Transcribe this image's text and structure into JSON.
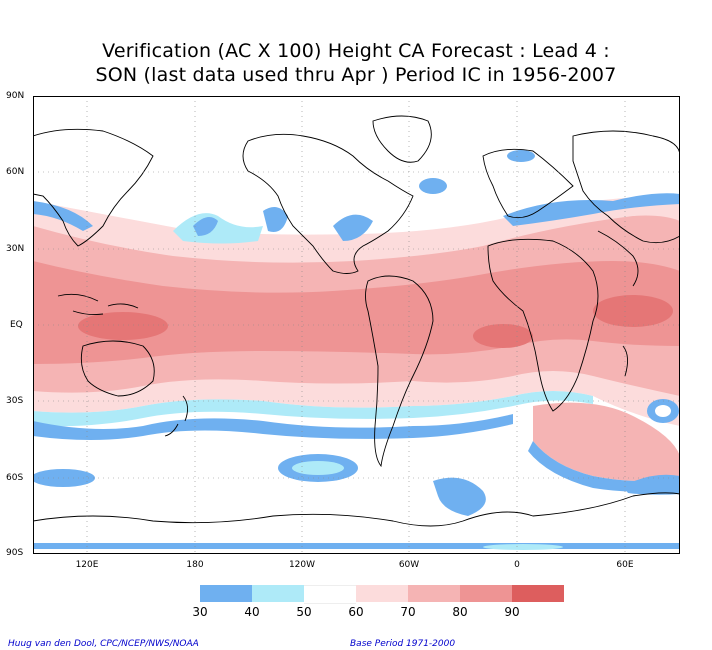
{
  "title_line1": "Verification (AC X 100) Height CA Forecast : Lead 4 :",
  "title_line2": "SON (last data used thru Apr ) Period IC in 1956-2007",
  "lat_labels": [
    "90N",
    "60N",
    "30N",
    "EQ",
    "30S",
    "60S",
    "90S"
  ],
  "lon_labels": [
    "120E",
    "180",
    "120W",
    "60W",
    "0",
    "60E"
  ],
  "colorbar": {
    "labels": [
      "30",
      "40",
      "50",
      "60",
      "70",
      "80",
      "90"
    ],
    "colors": [
      "#6fb0f0",
      "#aeeaf8",
      "#ffffff",
      "#fcdcdc",
      "#f5b4b4",
      "#ee9494",
      "#e57676",
      "#dd5e5e"
    ]
  },
  "footer_left": "Huug van den Dool, CPC/NCEP/NWS/NOAA",
  "footer_right": "Base Period 1971-2000"
}
